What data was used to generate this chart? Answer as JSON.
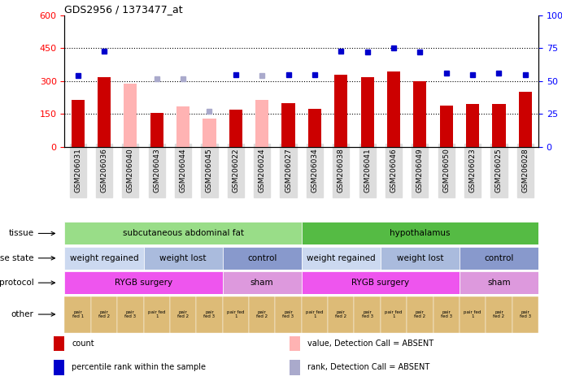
{
  "title": "GDS2956 / 1373477_at",
  "samples": [
    "GSM206031",
    "GSM206036",
    "GSM206040",
    "GSM206043",
    "GSM206044",
    "GSM206045",
    "GSM206022",
    "GSM206024",
    "GSM206027",
    "GSM206034",
    "GSM206038",
    "GSM206041",
    "GSM206046",
    "GSM206049",
    "GSM206050",
    "GSM206023",
    "GSM206025",
    "GSM206028"
  ],
  "count_values": [
    215,
    320,
    null,
    155,
    null,
    null,
    170,
    null,
    200,
    175,
    330,
    320,
    345,
    300,
    190,
    195,
    195,
    250
  ],
  "count_absent": [
    null,
    null,
    290,
    null,
    185,
    130,
    null,
    215,
    null,
    null,
    null,
    null,
    null,
    null,
    null,
    null,
    null,
    null
  ],
  "percentile_present": [
    54,
    73,
    null,
    null,
    null,
    null,
    55,
    null,
    55,
    55,
    73,
    72,
    75,
    72,
    56,
    55,
    56,
    55
  ],
  "percentile_absent": [
    null,
    null,
    null,
    52,
    52,
    27,
    null,
    54,
    null,
    null,
    null,
    null,
    null,
    null,
    null,
    null,
    null,
    null
  ],
  "ylim_left": [
    0,
    600
  ],
  "ylim_right": [
    0,
    100
  ],
  "yticks_left": [
    0,
    150,
    300,
    450,
    600
  ],
  "yticks_right": [
    0,
    25,
    50,
    75,
    100
  ],
  "ytick_labels_left": [
    "0",
    "150",
    "300",
    "450",
    "600"
  ],
  "ytick_labels_right": [
    "0",
    "25",
    "50",
    "75",
    "100%"
  ],
  "hlines": [
    150,
    300,
    450
  ],
  "color_count_present": "#cc0000",
  "color_count_absent": "#ffb3b3",
  "color_percentile_present": "#0000cc",
  "color_percentile_absent": "#aaaacc",
  "tissue_segments": [
    {
      "text": "subcutaneous abdominal fat",
      "start": 0,
      "end": 9,
      "color": "#99dd88"
    },
    {
      "text": "hypothalamus",
      "start": 9,
      "end": 18,
      "color": "#55bb44"
    }
  ],
  "disease_segments": [
    {
      "text": "weight regained",
      "start": 0,
      "end": 3,
      "color": "#ccd9f0"
    },
    {
      "text": "weight lost",
      "start": 3,
      "end": 6,
      "color": "#aabbdd"
    },
    {
      "text": "control",
      "start": 6,
      "end": 9,
      "color": "#8899cc"
    },
    {
      "text": "weight regained",
      "start": 9,
      "end": 12,
      "color": "#ccd9f0"
    },
    {
      "text": "weight lost",
      "start": 12,
      "end": 15,
      "color": "#aabbdd"
    },
    {
      "text": "control",
      "start": 15,
      "end": 18,
      "color": "#8899cc"
    }
  ],
  "protocol_segments": [
    {
      "text": "RYGB surgery",
      "start": 0,
      "end": 6,
      "color": "#ee55ee"
    },
    {
      "text": "sham",
      "start": 6,
      "end": 9,
      "color": "#dd99dd"
    },
    {
      "text": "RYGB surgery",
      "start": 9,
      "end": 15,
      "color": "#ee55ee"
    },
    {
      "text": "sham",
      "start": 15,
      "end": 18,
      "color": "#dd99dd"
    }
  ],
  "other_cells": [
    "pair\nfed 1",
    "pair\nfed 2",
    "pair\nfed 3",
    "pair fed\n1",
    "pair\nfed 2",
    "pair\nfed 3",
    "pair fed\n1",
    "pair\nfed 2",
    "pair\nfed 3",
    "pair fed\n1",
    "pair\nfed 2",
    "pair\nfed 3",
    "pair fed\n1",
    "pair\nfed 2",
    "pair\nfed 3",
    "pair fed\n1",
    "pair\nfed 2",
    "pair\nfed 3"
  ],
  "other_color": "#ddbb77",
  "row_labels": [
    "tissue",
    "disease state",
    "protocol",
    "other"
  ],
  "legend_items": [
    {
      "color": "#cc0000",
      "label": "count"
    },
    {
      "color": "#0000cc",
      "label": "percentile rank within the sample"
    },
    {
      "color": "#ffb3b3",
      "label": "value, Detection Call = ABSENT"
    },
    {
      "color": "#aaaacc",
      "label": "rank, Detection Call = ABSENT"
    }
  ]
}
